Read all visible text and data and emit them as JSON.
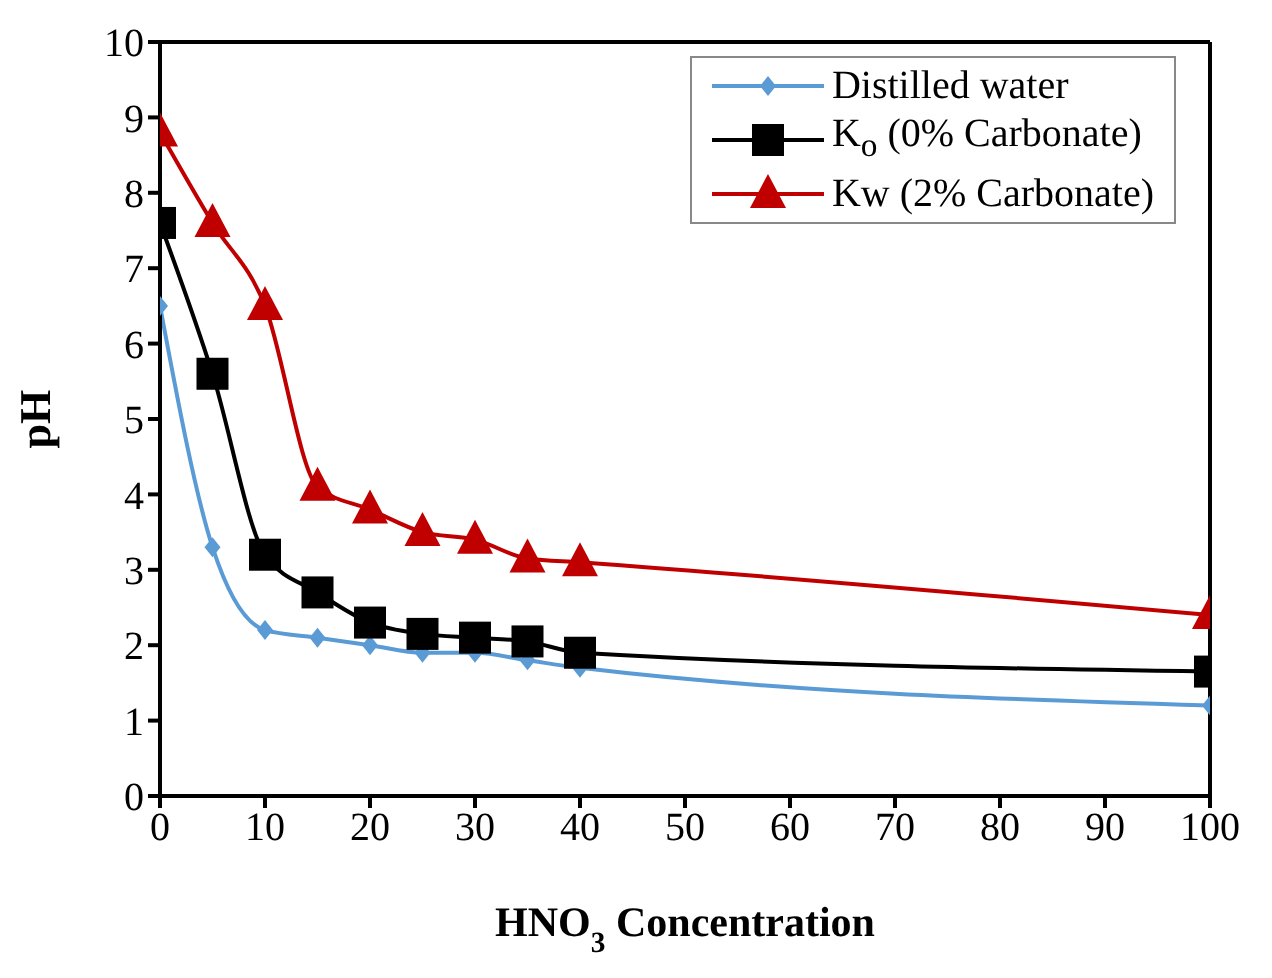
{
  "chart_data": {
    "type": "line",
    "xlabel": "HNO$_{3}$ Concentration",
    "ylabel": "pH",
    "x": [
      0,
      5,
      10,
      15,
      20,
      25,
      30,
      35,
      40,
      100
    ],
    "series": [
      {
        "name": "Distilled water",
        "color": "#5b9bd5",
        "marker": "diamond",
        "values": [
          6.5,
          3.3,
          2.2,
          2.1,
          2.0,
          1.9,
          1.9,
          1.8,
          1.7,
          1.2
        ]
      },
      {
        "name": "K$_{o}$ (0% Carbonate)",
        "color": "#000000",
        "marker": "square",
        "values": [
          7.6,
          5.6,
          3.2,
          2.7,
          2.3,
          2.15,
          2.1,
          2.05,
          1.9,
          1.65
        ]
      },
      {
        "name": "Kw (2% Carbonate)",
        "color": "#c00000",
        "marker": "triangle",
        "values": [
          8.8,
          7.6,
          6.5,
          4.1,
          3.8,
          3.5,
          3.4,
          3.15,
          3.1,
          2.4
        ]
      }
    ],
    "xlim": [
      0,
      100
    ],
    "xticks": [
      0,
      10,
      20,
      30,
      40,
      50,
      60,
      70,
      80,
      90,
      100
    ],
    "ylim": [
      0,
      10
    ],
    "yticks": [
      0,
      1,
      2,
      3,
      4,
      5,
      6,
      7,
      8,
      9,
      10
    ],
    "grid": false,
    "legend": "top right"
  }
}
